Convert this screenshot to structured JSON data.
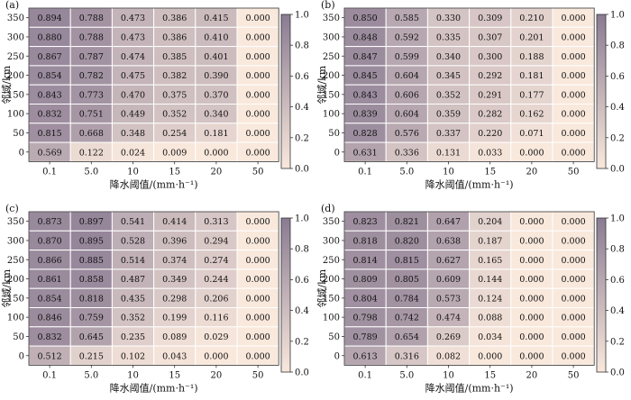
{
  "colors": {
    "low": "#f9e8dc",
    "high": "#8a7b92",
    "cell_border": "#ffffff",
    "frame": "#333333"
  },
  "chart_data": [
    {
      "type": "heatmap",
      "panel_label": "(a)",
      "xlabel": "降水阈值/(mm·h⁻¹)",
      "ylabel": "邻域/km",
      "x_categories": [
        "0.1",
        "5.0",
        "10",
        "15",
        "20",
        "50"
      ],
      "y_categories": [
        "350",
        "300",
        "250",
        "200",
        "150",
        "100",
        "50",
        "0"
      ],
      "values": [
        [
          0.894,
          0.788,
          0.473,
          0.386,
          0.415,
          0.0
        ],
        [
          0.88,
          0.788,
          0.473,
          0.386,
          0.41,
          0.0
        ],
        [
          0.867,
          0.787,
          0.474,
          0.385,
          0.401,
          0.0
        ],
        [
          0.854,
          0.782,
          0.475,
          0.382,
          0.39,
          0.0
        ],
        [
          0.843,
          0.773,
          0.47,
          0.375,
          0.37,
          0.0
        ],
        [
          0.832,
          0.751,
          0.449,
          0.352,
          0.34,
          0.0
        ],
        [
          0.815,
          0.668,
          0.348,
          0.254,
          0.181,
          0.0
        ],
        [
          0.569,
          0.122,
          0.024,
          0.009,
          0.0,
          0.0
        ]
      ],
      "value_labels": [
        [
          "0.894",
          "0.788",
          "0.473",
          "0.386",
          "0.415",
          "0.000"
        ],
        [
          "0.880",
          "0.788",
          "0.473",
          "0.386",
          "0.410",
          "0.000"
        ],
        [
          "0.867",
          "0.787",
          "0.474",
          "0.385",
          "0.401",
          "0.000"
        ],
        [
          "0.854",
          "0.782",
          "0.475",
          "0.382",
          "0.390",
          "0.000"
        ],
        [
          "0.843",
          "0.773",
          "0.470",
          "0.375",
          "0.370",
          "0.000"
        ],
        [
          "0.832",
          "0.751",
          "0.449",
          "0.352",
          "0.340",
          "0.000"
        ],
        [
          "0.815",
          "0.668",
          "0.348",
          "0.254",
          "0.181",
          "0.000"
        ],
        [
          "0.569",
          "0.122",
          "0.024",
          "0.009",
          "0.000",
          "0.000"
        ]
      ],
      "colorbar_range": [
        0,
        1
      ],
      "colorbar_ticks": [
        "1.0",
        "0.8",
        "0.6",
        "0.4",
        "0.2",
        "0.0"
      ]
    },
    {
      "type": "heatmap",
      "panel_label": "(b)",
      "xlabel": "降水阈值/(mm·h⁻¹)",
      "ylabel": "邻域/km",
      "x_categories": [
        "0.1",
        "5.0",
        "10",
        "15",
        "20",
        "50"
      ],
      "y_categories": [
        "350",
        "300",
        "250",
        "200",
        "150",
        "100",
        "50",
        "0"
      ],
      "values": [
        [
          0.85,
          0.585,
          0.33,
          0.309,
          0.21,
          0.0
        ],
        [
          0.848,
          0.592,
          0.335,
          0.307,
          0.201,
          0.0
        ],
        [
          0.847,
          0.599,
          0.34,
          0.3,
          0.188,
          0.0
        ],
        [
          0.845,
          0.604,
          0.345,
          0.292,
          0.181,
          0.0
        ],
        [
          0.843,
          0.606,
          0.352,
          0.291,
          0.177,
          0.0
        ],
        [
          0.839,
          0.604,
          0.359,
          0.282,
          0.162,
          0.0
        ],
        [
          0.828,
          0.576,
          0.337,
          0.22,
          0.071,
          0.0
        ],
        [
          0.631,
          0.336,
          0.131,
          0.033,
          0.0,
          0.0
        ]
      ],
      "value_labels": [
        [
          "0.850",
          "0.585",
          "0.330",
          "0.309",
          "0.210",
          "0.000"
        ],
        [
          "0.848",
          "0.592",
          "0.335",
          "0.307",
          "0.201",
          "0.000"
        ],
        [
          "0.847",
          "0.599",
          "0.340",
          "0.300",
          "0.188",
          "0.000"
        ],
        [
          "0.845",
          "0.604",
          "0.345",
          "0.292",
          "0.181",
          "0.000"
        ],
        [
          "0.843",
          "0.606",
          "0.352",
          "0.291",
          "0.177",
          "0.000"
        ],
        [
          "0.839",
          "0.604",
          "0.359",
          "0.282",
          "0.162",
          "0.000"
        ],
        [
          "0.828",
          "0.576",
          "0.337",
          "0.220",
          "0.071",
          "0.000"
        ],
        [
          "0.631",
          "0.336",
          "0.131",
          "0.033",
          "0.000",
          "0.000"
        ]
      ],
      "colorbar_range": [
        0,
        1
      ],
      "colorbar_ticks": [
        "1.0",
        "0.8",
        "0.6",
        "0.4",
        "0.2",
        "0.0"
      ]
    },
    {
      "type": "heatmap",
      "panel_label": "(c)",
      "xlabel": "降水阈值/(mm·h⁻¹)",
      "ylabel": "邻域/km",
      "x_categories": [
        "0.1",
        "5.0",
        "10",
        "15",
        "20",
        "50"
      ],
      "y_categories": [
        "350",
        "300",
        "250",
        "200",
        "150",
        "100",
        "50",
        "0"
      ],
      "values": [
        [
          0.873,
          0.897,
          0.541,
          0.414,
          0.313,
          0.0
        ],
        [
          0.87,
          0.895,
          0.528,
          0.396,
          0.294,
          0.0
        ],
        [
          0.866,
          0.885,
          0.514,
          0.374,
          0.274,
          0.0
        ],
        [
          0.861,
          0.858,
          0.487,
          0.349,
          0.244,
          0.0
        ],
        [
          0.854,
          0.818,
          0.435,
          0.298,
          0.206,
          0.0
        ],
        [
          0.846,
          0.759,
          0.352,
          0.199,
          0.116,
          0.0
        ],
        [
          0.832,
          0.645,
          0.235,
          0.089,
          0.029,
          0.0
        ],
        [
          0.512,
          0.215,
          0.102,
          0.043,
          0.0,
          0.0
        ]
      ],
      "value_labels": [
        [
          "0.873",
          "0.897",
          "0.541",
          "0.414",
          "0.313",
          "0.000"
        ],
        [
          "0.870",
          "0.895",
          "0.528",
          "0.396",
          "0.294",
          "0.000"
        ],
        [
          "0.866",
          "0.885",
          "0.514",
          "0.374",
          "0.274",
          "0.000"
        ],
        [
          "0.861",
          "0.858",
          "0.487",
          "0.349",
          "0.244",
          "0.000"
        ],
        [
          "0.854",
          "0.818",
          "0.435",
          "0.298",
          "0.206",
          "0.000"
        ],
        [
          "0.846",
          "0.759",
          "0.352",
          "0.199",
          "0.116",
          "0.000"
        ],
        [
          "0.832",
          "0.645",
          "0.235",
          "0.089",
          "0.029",
          "0.000"
        ],
        [
          "0.512",
          "0.215",
          "0.102",
          "0.043",
          "0.000",
          "0.000"
        ]
      ],
      "colorbar_range": [
        0,
        1
      ],
      "colorbar_ticks": [
        "1.0",
        "0.8",
        "0.6",
        "0.4",
        "0.2",
        "0.0"
      ]
    },
    {
      "type": "heatmap",
      "panel_label": "(d)",
      "xlabel": "降水阈值/(mm·h⁻¹)",
      "ylabel": "邻域/km",
      "x_categories": [
        "0.1",
        "5.0",
        "10",
        "15",
        "20",
        "50"
      ],
      "y_categories": [
        "350",
        "300",
        "250",
        "200",
        "150",
        "100",
        "50",
        "0"
      ],
      "values": [
        [
          0.823,
          0.821,
          0.647,
          0.204,
          0.0,
          0.0
        ],
        [
          0.818,
          0.82,
          0.638,
          0.187,
          0.0,
          0.0
        ],
        [
          0.814,
          0.815,
          0.627,
          0.165,
          0.0,
          0.0
        ],
        [
          0.809,
          0.805,
          0.609,
          0.144,
          0.0,
          0.0
        ],
        [
          0.804,
          0.784,
          0.573,
          0.124,
          0.0,
          0.0
        ],
        [
          0.798,
          0.742,
          0.474,
          0.088,
          0.0,
          0.0
        ],
        [
          0.789,
          0.654,
          0.269,
          0.034,
          0.0,
          0.0
        ],
        [
          0.613,
          0.316,
          0.082,
          0.0,
          0.0,
          0.0
        ]
      ],
      "value_labels": [
        [
          "0.823",
          "0.821",
          "0.647",
          "0.204",
          "0.000",
          "0.000"
        ],
        [
          "0.818",
          "0.820",
          "0.638",
          "0.187",
          "0.000",
          "0.000"
        ],
        [
          "0.814",
          "0.815",
          "0.627",
          "0.165",
          "0.000",
          "0.000"
        ],
        [
          "0.809",
          "0.805",
          "0.609",
          "0.144",
          "0.000",
          "0.000"
        ],
        [
          "0.804",
          "0.784",
          "0.573",
          "0.124",
          "0.000",
          "0.000"
        ],
        [
          "0.798",
          "0.742",
          "0.474",
          "0.088",
          "0.000",
          "0.000"
        ],
        [
          "0.789",
          "0.654",
          "0.269",
          "0.034",
          "0.000",
          "0.000"
        ],
        [
          "0.613",
          "0.316",
          "0.082",
          "0.000",
          "0.000",
          "0.000"
        ]
      ],
      "colorbar_range": [
        0,
        1
      ],
      "colorbar_ticks": [
        "1.0",
        "0.8",
        "0.6",
        "0.4",
        "0.2",
        "0.0"
      ]
    }
  ]
}
